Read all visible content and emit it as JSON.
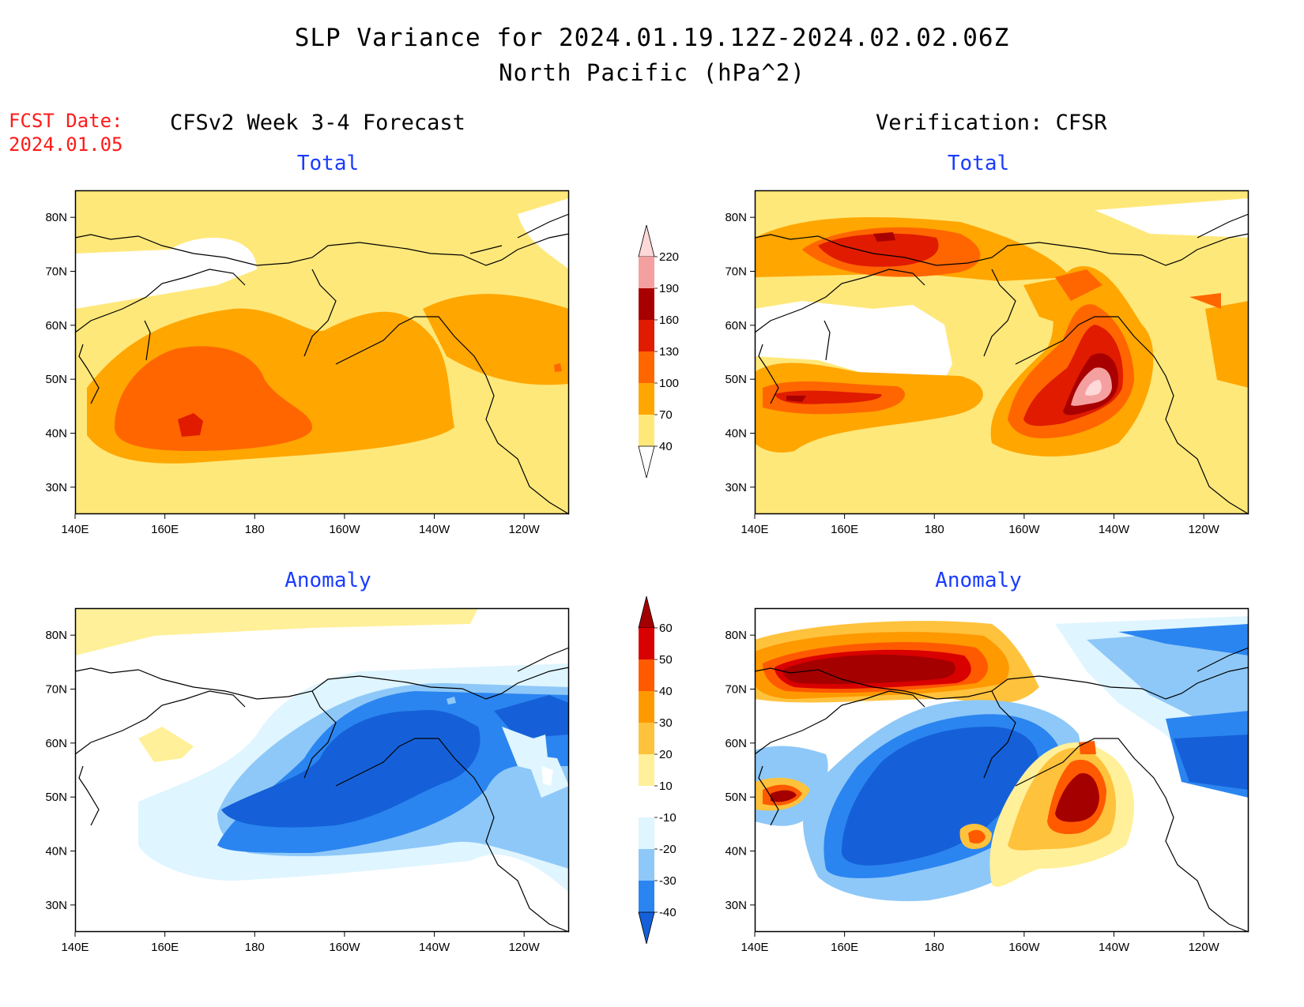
{
  "header": {
    "title": "SLP Variance for 2024.01.19.12Z-2024.02.02.06Z",
    "subtitle": "North Pacific (hPa^2)",
    "fcst_label_line1": "FCST Date:",
    "fcst_label_line2": "2024.01.05",
    "left_column_title": "CFSv2 Week 3-4 Forecast",
    "right_column_title": "Verification: CFSR"
  },
  "panels": [
    {
      "id": "fcst-total",
      "title": "Total"
    },
    {
      "id": "verif-total",
      "title": "Total"
    },
    {
      "id": "fcst-anomaly",
      "title": "Anomaly"
    },
    {
      "id": "verif-anomaly",
      "title": "Anomaly"
    }
  ],
  "map_axes": {
    "lon_labels": [
      "140E",
      "160E",
      "180",
      "160W",
      "140W",
      "120W"
    ],
    "lat_labels": [
      "30N",
      "40N",
      "50N",
      "60N",
      "70N",
      "80N"
    ],
    "lon_range": [
      140,
      250
    ],
    "lat_range": [
      25,
      85
    ]
  },
  "colorbars": {
    "total": {
      "labels": [
        "40",
        "70",
        "100",
        "130",
        "160",
        "190",
        "220"
      ],
      "colors": [
        "#ffe87a",
        "#ffa600",
        "#ff6600",
        "#e01b00",
        "#a80000",
        "#f5a0a0",
        "#ffd8d8"
      ]
    },
    "anomaly": {
      "labels": [
        "-40",
        "-30",
        "-20",
        "-10",
        "10",
        "20",
        "30",
        "40",
        "50",
        "60"
      ],
      "colors": [
        "#1560d8",
        "#2b85f0",
        "#8ec8f8",
        "#dff5ff",
        "#ffffff",
        "#fff099",
        "#ffc23c",
        "#ff9900",
        "#ff5a00",
        "#d90000",
        "#a50000"
      ]
    }
  }
}
